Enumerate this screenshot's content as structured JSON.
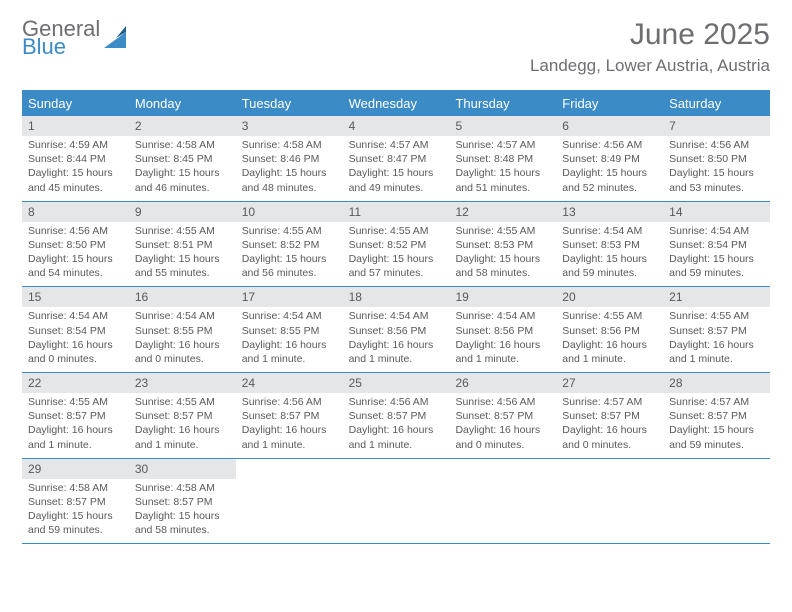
{
  "brand": {
    "part1": "General",
    "part2": "Blue"
  },
  "title": "June 2025",
  "location": "Landegg, Lower Austria, Austria",
  "colors": {
    "accent": "#3b8bc6",
    "header_text": "#6d6e71",
    "cell_text": "#58595b",
    "daybar_bg": "#e5e6e7",
    "background": "#ffffff"
  },
  "typography": {
    "title_fontsize": 30,
    "location_fontsize": 17,
    "dayhead_fontsize": 13,
    "cell_fontsize": 10.5
  },
  "day_headers": [
    "Sunday",
    "Monday",
    "Tuesday",
    "Wednesday",
    "Thursday",
    "Friday",
    "Saturday"
  ],
  "weeks": [
    [
      {
        "n": "1",
        "sunrise": "Sunrise: 4:59 AM",
        "sunset": "Sunset: 8:44 PM",
        "daylight1": "Daylight: 15 hours",
        "daylight2": "and 45 minutes."
      },
      {
        "n": "2",
        "sunrise": "Sunrise: 4:58 AM",
        "sunset": "Sunset: 8:45 PM",
        "daylight1": "Daylight: 15 hours",
        "daylight2": "and 46 minutes."
      },
      {
        "n": "3",
        "sunrise": "Sunrise: 4:58 AM",
        "sunset": "Sunset: 8:46 PM",
        "daylight1": "Daylight: 15 hours",
        "daylight2": "and 48 minutes."
      },
      {
        "n": "4",
        "sunrise": "Sunrise: 4:57 AM",
        "sunset": "Sunset: 8:47 PM",
        "daylight1": "Daylight: 15 hours",
        "daylight2": "and 49 minutes."
      },
      {
        "n": "5",
        "sunrise": "Sunrise: 4:57 AM",
        "sunset": "Sunset: 8:48 PM",
        "daylight1": "Daylight: 15 hours",
        "daylight2": "and 51 minutes."
      },
      {
        "n": "6",
        "sunrise": "Sunrise: 4:56 AM",
        "sunset": "Sunset: 8:49 PM",
        "daylight1": "Daylight: 15 hours",
        "daylight2": "and 52 minutes."
      },
      {
        "n": "7",
        "sunrise": "Sunrise: 4:56 AM",
        "sunset": "Sunset: 8:50 PM",
        "daylight1": "Daylight: 15 hours",
        "daylight2": "and 53 minutes."
      }
    ],
    [
      {
        "n": "8",
        "sunrise": "Sunrise: 4:56 AM",
        "sunset": "Sunset: 8:50 PM",
        "daylight1": "Daylight: 15 hours",
        "daylight2": "and 54 minutes."
      },
      {
        "n": "9",
        "sunrise": "Sunrise: 4:55 AM",
        "sunset": "Sunset: 8:51 PM",
        "daylight1": "Daylight: 15 hours",
        "daylight2": "and 55 minutes."
      },
      {
        "n": "10",
        "sunrise": "Sunrise: 4:55 AM",
        "sunset": "Sunset: 8:52 PM",
        "daylight1": "Daylight: 15 hours",
        "daylight2": "and 56 minutes."
      },
      {
        "n": "11",
        "sunrise": "Sunrise: 4:55 AM",
        "sunset": "Sunset: 8:52 PM",
        "daylight1": "Daylight: 15 hours",
        "daylight2": "and 57 minutes."
      },
      {
        "n": "12",
        "sunrise": "Sunrise: 4:55 AM",
        "sunset": "Sunset: 8:53 PM",
        "daylight1": "Daylight: 15 hours",
        "daylight2": "and 58 minutes."
      },
      {
        "n": "13",
        "sunrise": "Sunrise: 4:54 AM",
        "sunset": "Sunset: 8:53 PM",
        "daylight1": "Daylight: 15 hours",
        "daylight2": "and 59 minutes."
      },
      {
        "n": "14",
        "sunrise": "Sunrise: 4:54 AM",
        "sunset": "Sunset: 8:54 PM",
        "daylight1": "Daylight: 15 hours",
        "daylight2": "and 59 minutes."
      }
    ],
    [
      {
        "n": "15",
        "sunrise": "Sunrise: 4:54 AM",
        "sunset": "Sunset: 8:54 PM",
        "daylight1": "Daylight: 16 hours",
        "daylight2": "and 0 minutes."
      },
      {
        "n": "16",
        "sunrise": "Sunrise: 4:54 AM",
        "sunset": "Sunset: 8:55 PM",
        "daylight1": "Daylight: 16 hours",
        "daylight2": "and 0 minutes."
      },
      {
        "n": "17",
        "sunrise": "Sunrise: 4:54 AM",
        "sunset": "Sunset: 8:55 PM",
        "daylight1": "Daylight: 16 hours",
        "daylight2": "and 1 minute."
      },
      {
        "n": "18",
        "sunrise": "Sunrise: 4:54 AM",
        "sunset": "Sunset: 8:56 PM",
        "daylight1": "Daylight: 16 hours",
        "daylight2": "and 1 minute."
      },
      {
        "n": "19",
        "sunrise": "Sunrise: 4:54 AM",
        "sunset": "Sunset: 8:56 PM",
        "daylight1": "Daylight: 16 hours",
        "daylight2": "and 1 minute."
      },
      {
        "n": "20",
        "sunrise": "Sunrise: 4:55 AM",
        "sunset": "Sunset: 8:56 PM",
        "daylight1": "Daylight: 16 hours",
        "daylight2": "and 1 minute."
      },
      {
        "n": "21",
        "sunrise": "Sunrise: 4:55 AM",
        "sunset": "Sunset: 8:57 PM",
        "daylight1": "Daylight: 16 hours",
        "daylight2": "and 1 minute."
      }
    ],
    [
      {
        "n": "22",
        "sunrise": "Sunrise: 4:55 AM",
        "sunset": "Sunset: 8:57 PM",
        "daylight1": "Daylight: 16 hours",
        "daylight2": "and 1 minute."
      },
      {
        "n": "23",
        "sunrise": "Sunrise: 4:55 AM",
        "sunset": "Sunset: 8:57 PM",
        "daylight1": "Daylight: 16 hours",
        "daylight2": "and 1 minute."
      },
      {
        "n": "24",
        "sunrise": "Sunrise: 4:56 AM",
        "sunset": "Sunset: 8:57 PM",
        "daylight1": "Daylight: 16 hours",
        "daylight2": "and 1 minute."
      },
      {
        "n": "25",
        "sunrise": "Sunrise: 4:56 AM",
        "sunset": "Sunset: 8:57 PM",
        "daylight1": "Daylight: 16 hours",
        "daylight2": "and 1 minute."
      },
      {
        "n": "26",
        "sunrise": "Sunrise: 4:56 AM",
        "sunset": "Sunset: 8:57 PM",
        "daylight1": "Daylight: 16 hours",
        "daylight2": "and 0 minutes."
      },
      {
        "n": "27",
        "sunrise": "Sunrise: 4:57 AM",
        "sunset": "Sunset: 8:57 PM",
        "daylight1": "Daylight: 16 hours",
        "daylight2": "and 0 minutes."
      },
      {
        "n": "28",
        "sunrise": "Sunrise: 4:57 AM",
        "sunset": "Sunset: 8:57 PM",
        "daylight1": "Daylight: 15 hours",
        "daylight2": "and 59 minutes."
      }
    ],
    [
      {
        "n": "29",
        "sunrise": "Sunrise: 4:58 AM",
        "sunset": "Sunset: 8:57 PM",
        "daylight1": "Daylight: 15 hours",
        "daylight2": "and 59 minutes."
      },
      {
        "n": "30",
        "sunrise": "Sunrise: 4:58 AM",
        "sunset": "Sunset: 8:57 PM",
        "daylight1": "Daylight: 15 hours",
        "daylight2": "and 58 minutes."
      },
      {
        "empty": true
      },
      {
        "empty": true
      },
      {
        "empty": true
      },
      {
        "empty": true
      },
      {
        "empty": true
      }
    ]
  ]
}
